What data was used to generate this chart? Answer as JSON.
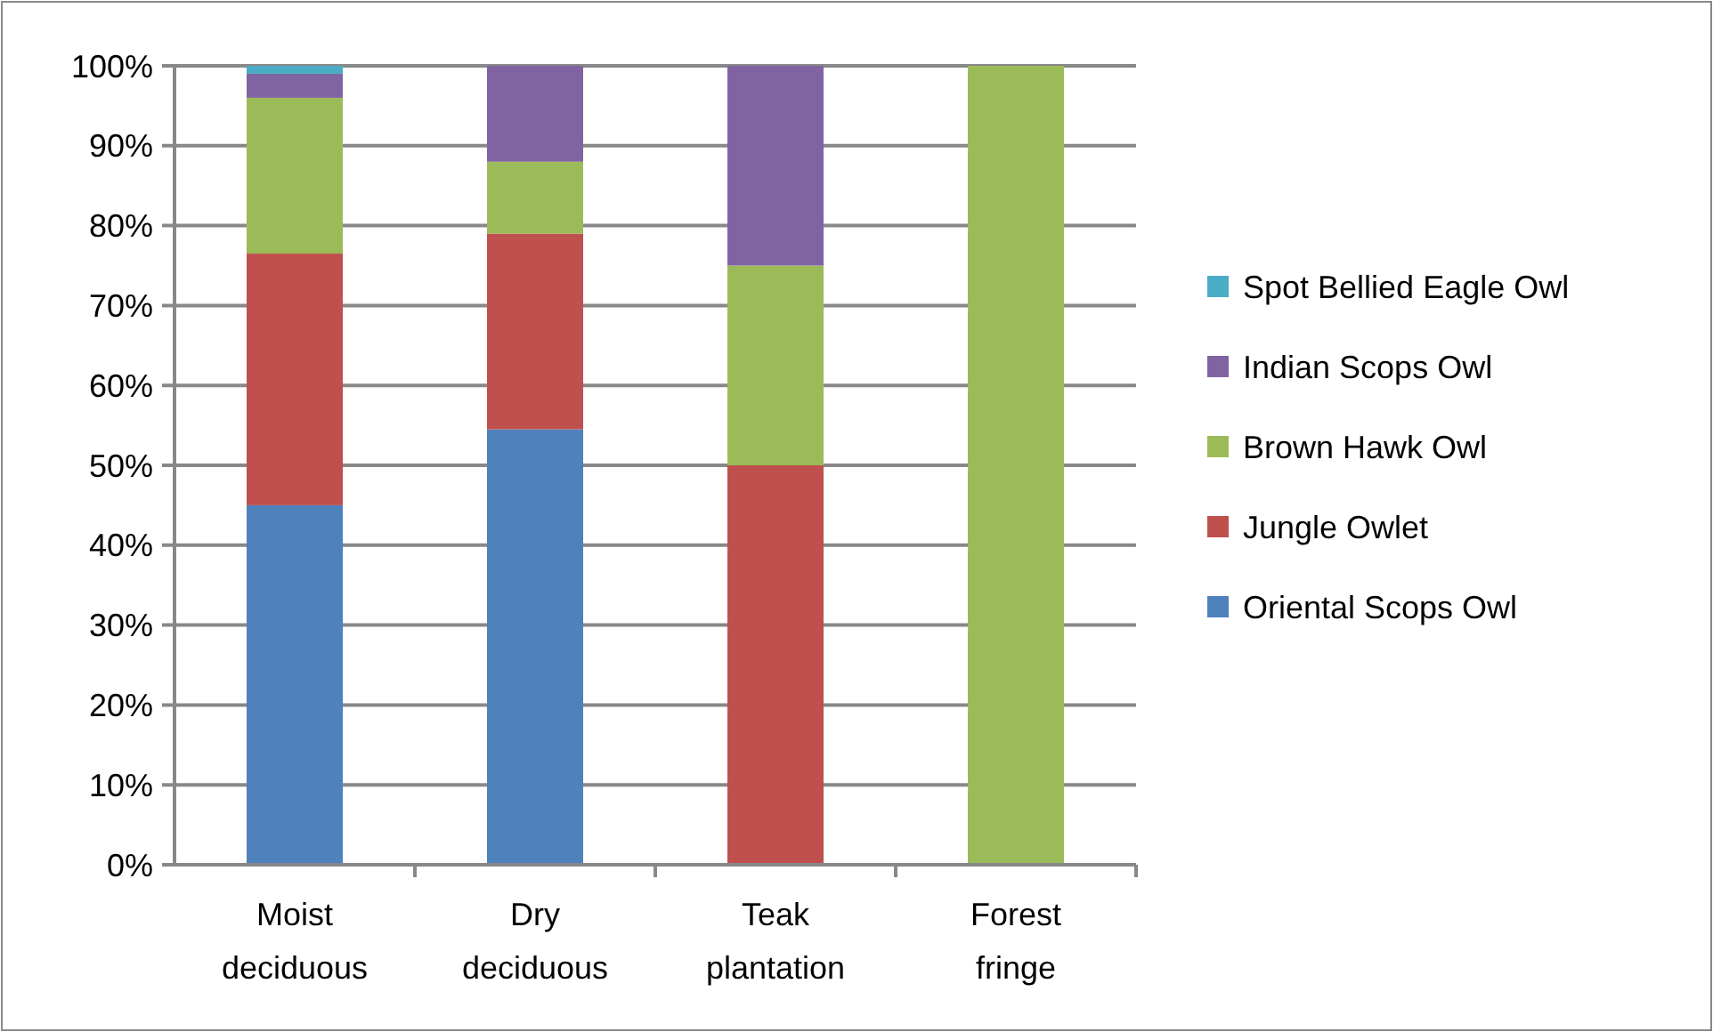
{
  "chart_data": {
    "type": "bar",
    "stacked": true,
    "categories": [
      "Moist deciduous",
      "Dry deciduous",
      "Teak plantation",
      "Forest fringe"
    ],
    "series": [
      {
        "name": "Oriental Scops Owl",
        "color": "#4f81bd",
        "values": [
          45,
          54.5,
          0,
          0
        ]
      },
      {
        "name": "Jungle Owlet",
        "color": "#c0504d",
        "values": [
          31.5,
          24.5,
          50,
          0
        ]
      },
      {
        "name": "Brown Hawk Owl",
        "color": "#9bbb59",
        "values": [
          19.5,
          9,
          25,
          100
        ]
      },
      {
        "name": "Indian Scops Owl",
        "color": "#8064a2",
        "values": [
          3,
          12,
          25,
          0
        ]
      },
      {
        "name": "Spot Bellied Eagle Owl",
        "color": "#4bacc6",
        "values": [
          1,
          0,
          0,
          0
        ]
      }
    ],
    "ylim": [
      0,
      100
    ],
    "yticks": [
      {
        "value": 0,
        "label": "0%"
      },
      {
        "value": 10,
        "label": "10%"
      },
      {
        "value": 20,
        "label": "20%"
      },
      {
        "value": 30,
        "label": "30%"
      },
      {
        "value": 40,
        "label": "40%"
      },
      {
        "value": 50,
        "label": "50%"
      },
      {
        "value": 60,
        "label": "60%"
      },
      {
        "value": 70,
        "label": "70%"
      },
      {
        "value": 80,
        "label": "80%"
      },
      {
        "value": 90,
        "label": "90%"
      },
      {
        "value": 100,
        "label": "100%"
      }
    ],
    "grid": "y",
    "legend": "right"
  }
}
